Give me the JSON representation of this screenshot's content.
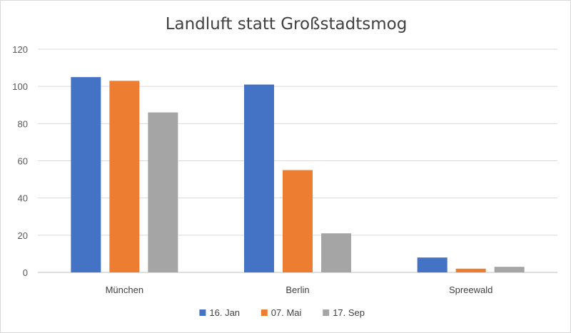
{
  "chart_data": {
    "type": "bar",
    "title": "Landluft statt Großstadtsmog",
    "categories": [
      "München",
      "Berlin",
      "Spreewald"
    ],
    "series": [
      {
        "name": "16. Jan",
        "values": [
          105,
          101,
          8
        ],
        "color": "#4472C4"
      },
      {
        "name": "07. Mai",
        "values": [
          103,
          55,
          2
        ],
        "color": "#ED7D31"
      },
      {
        "name": "17. Sep",
        "values": [
          86,
          21,
          3
        ],
        "color": "#A5A5A5"
      }
    ],
    "xlabel": "",
    "ylabel": "",
    "ylim": [
      0,
      120
    ],
    "yticks": [
      0,
      20,
      40,
      60,
      80,
      100,
      120
    ],
    "grid": true,
    "legend_position": "bottom"
  }
}
